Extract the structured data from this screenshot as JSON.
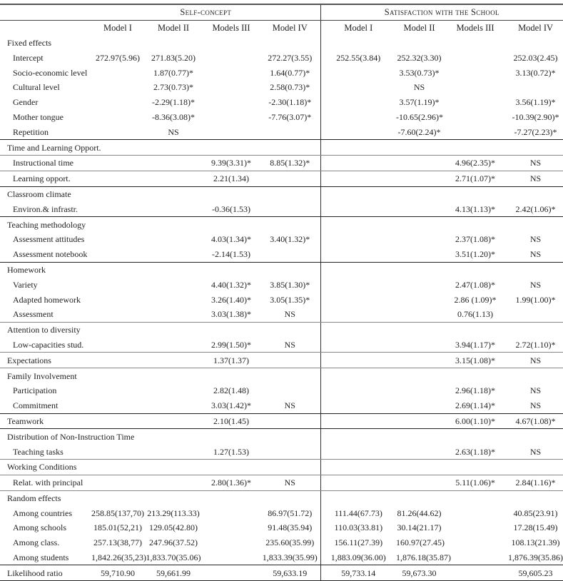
{
  "groups": [
    "Self-concept",
    "Satisfaction with the School"
  ],
  "columns": [
    "Model I",
    "Model II",
    "Models III",
    "Model IV",
    "Model I",
    "Model II",
    "Models III",
    "Model IV"
  ],
  "rows": [
    {
      "label": "Fixed effects",
      "sub": false,
      "cells": [
        "",
        "",
        "",
        "",
        "",
        "",
        "",
        ""
      ]
    },
    {
      "label": "Intercept",
      "sub": true,
      "cells": [
        "272.97(5.96)",
        "271.83(5.20)",
        "",
        "272.27(3.55)",
        "252.55(3.84)",
        "252.32(3.30)",
        "",
        "252.03(2.45)"
      ]
    },
    {
      "label": "Socio-economic level",
      "sub": true,
      "cells": [
        "",
        "1.87(0.77)*",
        "",
        "1.64(0.77)*",
        "",
        "3.53(0.73)*",
        "",
        "3.13(0.72)*"
      ]
    },
    {
      "label": "Cultural level",
      "sub": true,
      "cells": [
        "",
        "2.73(0.73)*",
        "",
        "2.58(0.73)*",
        "",
        "NS",
        "",
        ""
      ]
    },
    {
      "label": "Gender",
      "sub": true,
      "cells": [
        "",
        "-2.29(1.18)*",
        "",
        "-2.30(1.18)*",
        "",
        "3.57(1.19)*",
        "",
        "3.56(1.19)*"
      ]
    },
    {
      "label": "Mother tongue",
      "sub": true,
      "cells": [
        "",
        "-8.36(3.08)*",
        "",
        "-7.76(3.07)*",
        "",
        "-10.65(2.96)*",
        "",
        "-10.39(2.90)*"
      ]
    },
    {
      "label": "Repetition",
      "sub": true,
      "cells": [
        "",
        "NS",
        "",
        "",
        "",
        "-7.60(2.24)*",
        "",
        "-7.27(2.23)*"
      ]
    },
    {
      "label": "Time and Learning Opport.",
      "sub": false,
      "cells": [
        "",
        "",
        "",
        "",
        "",
        "",
        "",
        ""
      ]
    },
    {
      "label": "Instructional time",
      "sub": true,
      "cells": [
        "",
        "",
        "9.39(3.31)*",
        "8.85(1.32)*",
        "",
        "",
        "4.96(2.35)*",
        "NS"
      ]
    },
    {
      "label": "Learning opport.",
      "sub": true,
      "cells": [
        "",
        "",
        "2.21(1.34)",
        "",
        "",
        "",
        "2.71(1.07)*",
        "NS"
      ]
    },
    {
      "label": "Classroom climate",
      "sub": false,
      "cells": [
        "",
        "",
        "",
        "",
        "",
        "",
        "",
        ""
      ]
    },
    {
      "label": "Environ.& infrastr.",
      "sub": true,
      "cells": [
        "",
        "",
        "-0.36(1.53)",
        "",
        "",
        "",
        "4.13(1.13)*",
        "2.42(1.06)*"
      ]
    },
    {
      "label": "Teaching methodology",
      "sub": false,
      "cells": [
        "",
        "",
        "",
        "",
        "",
        "",
        "",
        ""
      ]
    },
    {
      "label": "Assessment attitudes",
      "sub": true,
      "cells": [
        "",
        "",
        "4.03(1.34)*",
        "3.40(1.32)*",
        "",
        "",
        "2.37(1.08)*",
        "NS"
      ]
    },
    {
      "label": "Assessment notebook",
      "sub": true,
      "cells": [
        "",
        "",
        "-2.14(1.53)",
        "",
        "",
        "",
        "3.51(1.20)*",
        "NS"
      ]
    },
    {
      "label": "Homework",
      "sub": false,
      "cells": [
        "",
        "",
        "",
        "",
        "",
        "",
        "",
        ""
      ]
    },
    {
      "label": "Variety",
      "sub": true,
      "cells": [
        "",
        "",
        "4.40(1.32)*",
        "3.85(1.30)*",
        "",
        "",
        "2.47(1.08)*",
        "NS"
      ]
    },
    {
      "label": "Adapted homework",
      "sub": true,
      "cells": [
        "",
        "",
        "3.26(1.40)*",
        "3.05(1.35)*",
        "",
        "",
        "2.86 (1.09)*",
        "1.99(1.00)*"
      ]
    },
    {
      "label": "Assessment",
      "sub": true,
      "cells": [
        "",
        "",
        "3.03(1.38)*",
        "NS",
        "",
        "",
        "0.76(1.13)",
        ""
      ]
    },
    {
      "label": "Attention to diversity",
      "sub": false,
      "cells": [
        "",
        "",
        "",
        "",
        "",
        "",
        "",
        ""
      ]
    },
    {
      "label": "Low-capacities stud.",
      "sub": true,
      "cells": [
        "",
        "",
        "2.99(1.50)*",
        "NS",
        "",
        "",
        "3.94(1.17)*",
        "2.72(1.10)*"
      ]
    },
    {
      "label": "Expectations",
      "sub": false,
      "cells": [
        "",
        "",
        "1.37(1.37)",
        "",
        "",
        "",
        "3.15(1.08)*",
        "NS"
      ]
    },
    {
      "label": "Family Involvement",
      "sub": false,
      "cells": [
        "",
        "",
        "",
        "",
        "",
        "",
        "",
        ""
      ]
    },
    {
      "label": "Participation",
      "sub": true,
      "cells": [
        "",
        "",
        "2.82(1.48)",
        "",
        "",
        "",
        "2.96(1.18)*",
        "NS"
      ]
    },
    {
      "label": "Commitment",
      "sub": true,
      "cells": [
        "",
        "",
        "3.03(1.42)*",
        "NS",
        "",
        "",
        "2.69(1.14)*",
        "NS"
      ]
    },
    {
      "label": "Teamwork",
      "sub": false,
      "cells": [
        "",
        "",
        "2.10(1.45)",
        "",
        "",
        "",
        "6.00(1.10)*",
        "4.67(1.08)*"
      ]
    },
    {
      "label": "Distribution of Non-Instruction Time",
      "sub": false,
      "cells": [
        "",
        "",
        "",
        "",
        "",
        "",
        "",
        ""
      ]
    },
    {
      "label": "Teaching tasks",
      "sub": true,
      "cells": [
        "",
        "",
        "1.27(1.53)",
        "",
        "",
        "",
        "2.63(1.18)*",
        "NS"
      ]
    },
    {
      "label": "Working Conditions",
      "sub": false,
      "cells": [
        "",
        "",
        "",
        "",
        "",
        "",
        "",
        ""
      ]
    },
    {
      "label": "Relat. with principal",
      "sub": true,
      "cells": [
        "",
        "",
        "2.80(1.36)*",
        "NS",
        "",
        "",
        "5.11(1.06)*",
        "2.84(1.16)*"
      ]
    },
    {
      "label": "Random effects",
      "sub": false,
      "cells": [
        "",
        "",
        "",
        "",
        "",
        "",
        "",
        ""
      ]
    },
    {
      "label": "Among countries",
      "sub": true,
      "cells": [
        "258.85(137,70)",
        "213.29(113.33)",
        "",
        "86.97(51.72)",
        "111.44(67.73)",
        "81.26(44.62)",
        "",
        "40.85(23.91)"
      ]
    },
    {
      "label": "Among schools",
      "sub": true,
      "cells": [
        "185.01(52,21)",
        "129.05(42.80)",
        "",
        "91.48(35.94)",
        "110.03(33.81)",
        "30.14(21.17)",
        "",
        "17.28(15.49)"
      ]
    },
    {
      "label": "Among class.",
      "sub": true,
      "cells": [
        "257.13(38,77)",
        "247.96(37.52)",
        "",
        "235.60(35.99)",
        "156.11(27.39)",
        "160.97(27.45)",
        "",
        "108.13(21.39)"
      ]
    },
    {
      "label": "Among students",
      "sub": true,
      "cells": [
        "1,842.26(35,23)",
        "1,833.70(35.06)",
        "",
        "1,833.39(35.99)",
        "1,883.09(36.00)",
        "1,876.18(35.87)",
        "",
        "1,876.39(35.86)"
      ]
    },
    {
      "label": "Likelihood ratio",
      "sub": false,
      "cells": [
        "59,710.90",
        "59,661.99",
        "",
        "59,633.19",
        "59,733.14",
        "59,673.30",
        "",
        "59,605.23"
      ]
    }
  ]
}
